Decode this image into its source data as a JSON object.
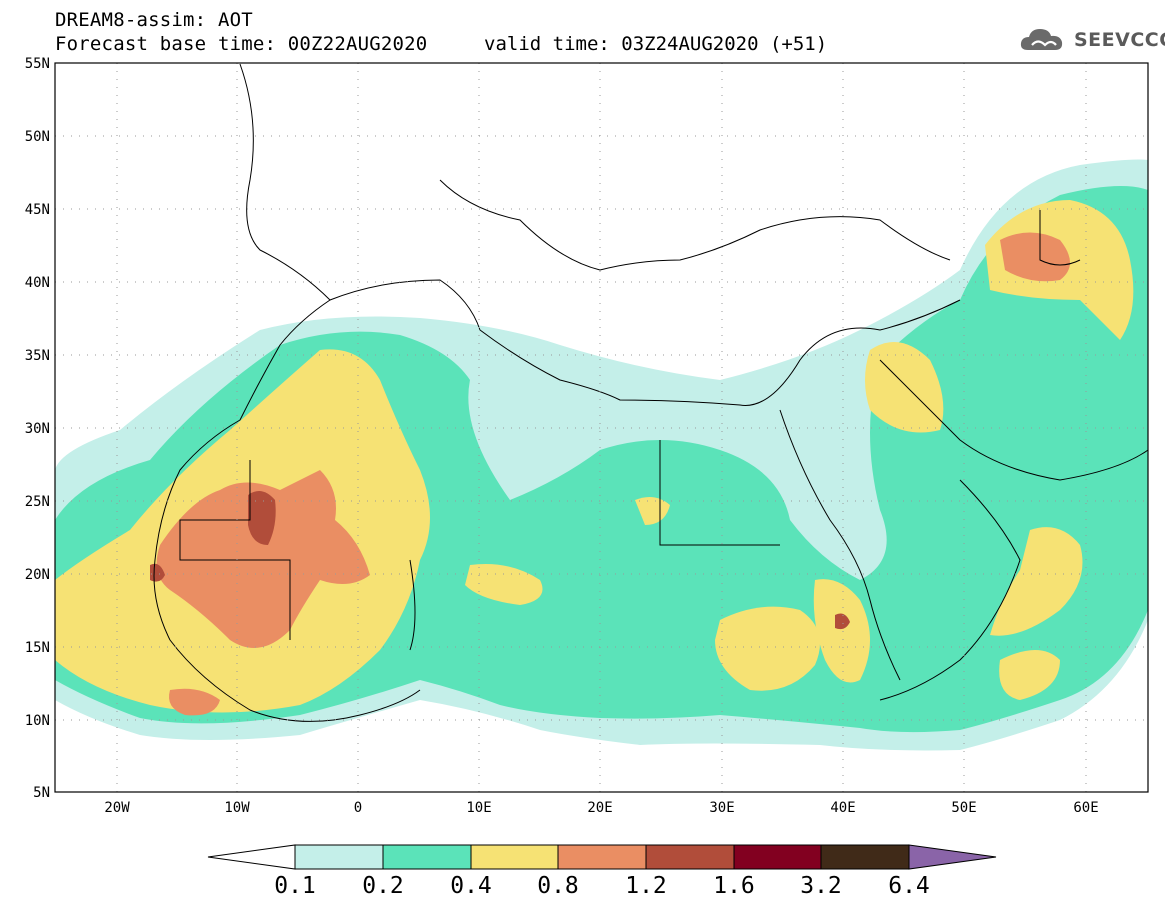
{
  "header": {
    "title": "DREAM8-assim: AOT",
    "base_time": "Forecast base time: 00Z22AUG2020",
    "valid_time": "valid time: 03Z24AUG2020 (+51)"
  },
  "logo": {
    "text": "SEEVCCC",
    "icon": "cloud-icon"
  },
  "axes": {
    "lat_labels": [
      "55N",
      "50N",
      "45N",
      "40N",
      "35N",
      "30N",
      "25N",
      "20N",
      "15N",
      "10N",
      "5N"
    ],
    "lon_labels": [
      "20W",
      "10W",
      "0",
      "10E",
      "20E",
      "30E",
      "40E",
      "50E",
      "60E"
    ],
    "lon_range": [
      -25,
      65
    ],
    "lat_range": [
      5,
      55
    ],
    "grid": true
  },
  "colorbar": {
    "labels": [
      "0.1",
      "0.2",
      "0.4",
      "0.8",
      "1.2",
      "1.6",
      "3.2",
      "6.4"
    ],
    "colors": [
      "#ffffff",
      "#c4efe9",
      "#5be3b9",
      "#f6e274",
      "#ea8e63",
      "#b14d3a",
      "#820020",
      "#402a18",
      "#8a64a8"
    ]
  }
}
